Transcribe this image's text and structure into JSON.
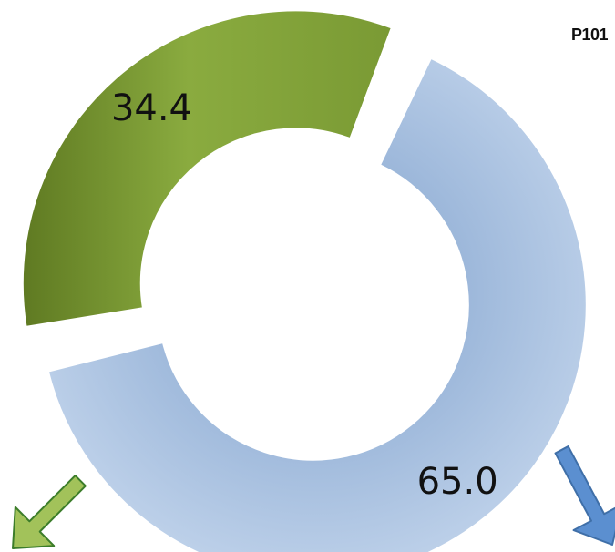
{
  "corner_label": "P101",
  "chart_data": {
    "type": "pie",
    "variant": "donut",
    "title": "",
    "slices": [
      {
        "label": "",
        "value": 65.0,
        "display": "65.0",
        "color": "#9bb7d9",
        "arrow_color": "#5b8fd0",
        "arrow_stroke": "#3f6fa8"
      },
      {
        "label": "",
        "value": 34.4,
        "display": "34.4",
        "color": "#89a83f",
        "arrow_color": "#a2c25a",
        "arrow_stroke": "#3c7d2a"
      }
    ],
    "legend": "none"
  }
}
